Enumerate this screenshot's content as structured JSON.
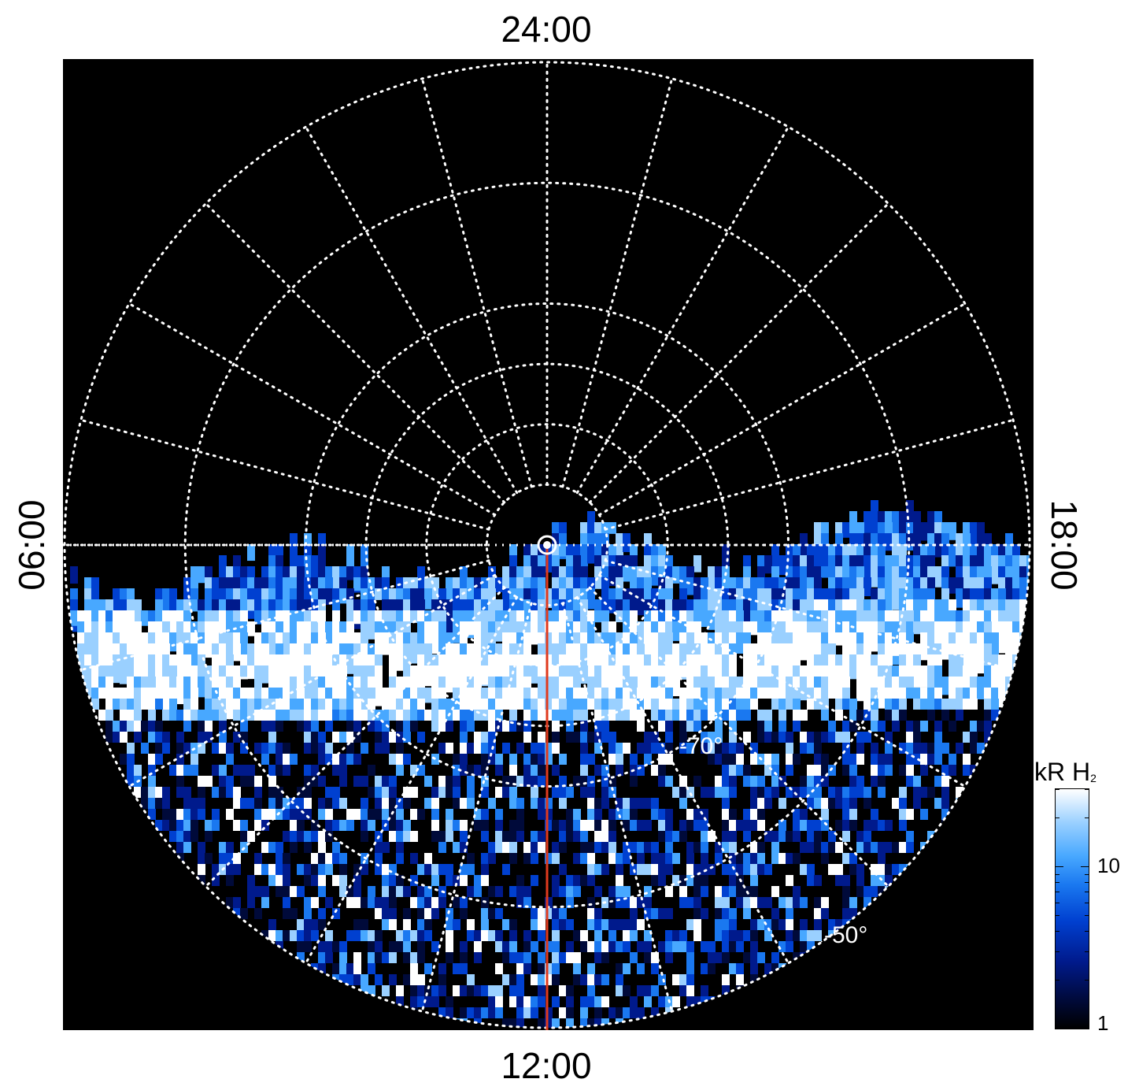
{
  "chart_data": {
    "type": "heatmap",
    "projection": "polar",
    "description_units": "local time (hh:mm) around the circle; latitude rings",
    "local_time_labels": {
      "top": "24:00",
      "bottom": "12:00",
      "left": "06:00",
      "right": "18:00"
    },
    "latitude_labels": [
      "-70°",
      "-50°"
    ],
    "latitude_rings_deg": [
      -85,
      -80,
      -75,
      -70,
      -60,
      -50
    ],
    "meridians_hours": 24,
    "colorbar": {
      "title": "kR H",
      "title_subscript": "2",
      "scale": "log",
      "range": [
        1,
        30
      ],
      "tick_labels": [
        "10",
        "1"
      ],
      "tick_values": [
        10,
        1
      ]
    },
    "colors": {
      "background": "#000000",
      "grid": "#ffffff",
      "meridian_line": "#e03a1e",
      "low": "#000000",
      "mid": "#1a78f0",
      "high": "#ffffff"
    }
  }
}
